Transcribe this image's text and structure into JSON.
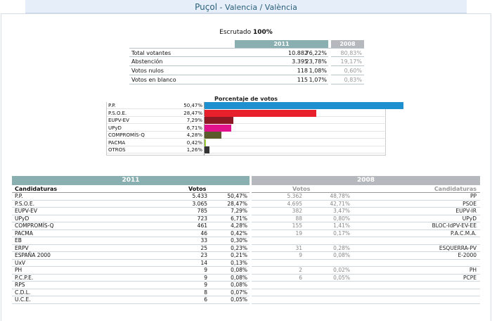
{
  "header": {
    "title": "Puçol",
    "subtitle": " - Valencia / València"
  },
  "escrutado": {
    "label": "Escrutado ",
    "value": "100%"
  },
  "summary": {
    "year_current": "2011",
    "year_previous": "2008",
    "rows": [
      {
        "label": "Total votantes",
        "votes": "10.882",
        "pct": "76,22%",
        "prev": "80,83%"
      },
      {
        "label": "Abstención",
        "votes": "3.395",
        "pct": "23,78%",
        "prev": "19,17%"
      },
      {
        "label": "Votos nulos",
        "votes": "118",
        "pct": "1,08%",
        "prev": "0,60%"
      },
      {
        "label": "Votos en blanco",
        "votes": "115",
        "pct": "1,07%",
        "prev": "0,83%"
      }
    ]
  },
  "chart_data": {
    "type": "bar",
    "title": "Porcentaje de votos",
    "categories": [
      "P.P.",
      "P.S.O.E.",
      "EUPV-EV",
      "UPyD",
      "COMPROMÍS-Q",
      "PACMA",
      "OTROS"
    ],
    "labels": [
      "50,47%",
      "28,47%",
      "7,29%",
      "6,71%",
      "4,28%",
      "0,42%",
      "1,26%"
    ],
    "values": [
      50.47,
      28.47,
      7.29,
      6.71,
      4.28,
      0.42,
      1.26
    ],
    "colors": [
      "#1e90d0",
      "#e8202c",
      "#8b1a24",
      "#e0128c",
      "#5a5a2a",
      "#9fcf3a",
      "#333333"
    ]
  },
  "results_2011": {
    "year": "2011",
    "col_party": "Candidaturas",
    "col_votes": "Votos",
    "rows": [
      {
        "name": "P.P.",
        "votes": "5.433",
        "pct": "50,47%"
      },
      {
        "name": "P.S.O.E.",
        "votes": "3.065",
        "pct": "28,47%"
      },
      {
        "name": "EUPV-EV",
        "votes": "785",
        "pct": "7,29%"
      },
      {
        "name": "UPyD",
        "votes": "723",
        "pct": "6,71%"
      },
      {
        "name": "COMPROMÍS-Q",
        "votes": "461",
        "pct": "4,28%"
      },
      {
        "name": "PACMA",
        "votes": "46",
        "pct": "0,42%"
      },
      {
        "name": "EB",
        "votes": "33",
        "pct": "0,30%"
      },
      {
        "name": "ERPV",
        "votes": "25",
        "pct": "0,23%"
      },
      {
        "name": "ESPAÑA 2000",
        "votes": "23",
        "pct": "0,21%"
      },
      {
        "name": "UxV",
        "votes": "14",
        "pct": "0,13%"
      },
      {
        "name": "PH",
        "votes": "9",
        "pct": "0,08%"
      },
      {
        "name": "P.C.P.E.",
        "votes": "9",
        "pct": "0,08%"
      },
      {
        "name": "RPS",
        "votes": "9",
        "pct": "0,08%"
      },
      {
        "name": "C.D.L.",
        "votes": "8",
        "pct": "0,07%"
      },
      {
        "name": "U.C.E.",
        "votes": "6",
        "pct": "0,05%"
      }
    ]
  },
  "results_2008": {
    "year": "2008",
    "col_votes": "Votos",
    "col_party": "Candidaturas",
    "rows": [
      {
        "votes": "5.362",
        "pct": "48,78%",
        "name": "PP"
      },
      {
        "votes": "4.695",
        "pct": "42,71%",
        "name": "PSOE"
      },
      {
        "votes": "382",
        "pct": "3,47%",
        "name": "EUPV-IR"
      },
      {
        "votes": "88",
        "pct": "0,80%",
        "name": "UPyD"
      },
      {
        "votes": "155",
        "pct": "1,41%",
        "name": "BLOC-IdPV-EV-EE"
      },
      {
        "votes": "19",
        "pct": "0,17%",
        "name": "P.A.C.M.A."
      },
      {
        "votes": "",
        "pct": "",
        "name": ""
      },
      {
        "votes": "31",
        "pct": "0,28%",
        "name": "ESQUERRA-PV"
      },
      {
        "votes": "9",
        "pct": "0,08%",
        "name": "E-2000"
      },
      {
        "votes": "",
        "pct": "",
        "name": ""
      },
      {
        "votes": "2",
        "pct": "0,02%",
        "name": "PH"
      },
      {
        "votes": "6",
        "pct": "0,05%",
        "name": "PCPE"
      },
      {
        "votes": "",
        "pct": "",
        "name": ""
      },
      {
        "votes": "",
        "pct": "",
        "name": ""
      },
      {
        "votes": "",
        "pct": "",
        "name": ""
      }
    ]
  }
}
